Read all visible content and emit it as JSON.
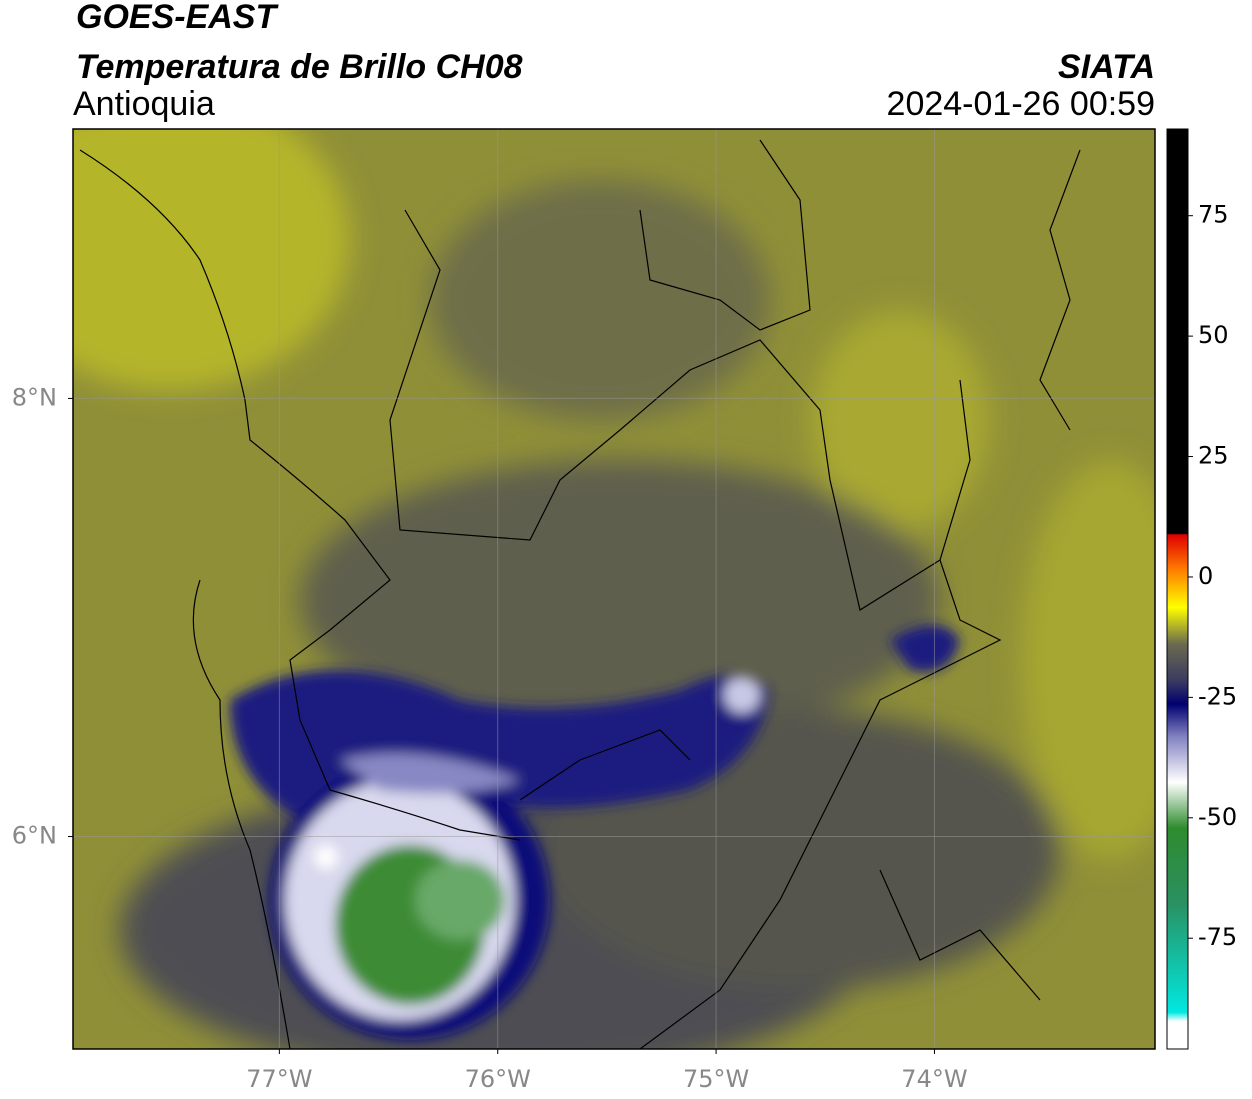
{
  "header": {
    "satellite": "GOES-EAST",
    "product": "Temperatura de Brillo CH08",
    "region": "Antioquia",
    "source": "SIATA",
    "datetime": "2024-01-26 00:59"
  },
  "map": {
    "xlim": [
      -77.945,
      -72.99
    ],
    "ylim": [
      5.03,
      9.23
    ],
    "xticks": [
      {
        "value": -77,
        "label": "77°W"
      },
      {
        "value": -76,
        "label": "76°W"
      },
      {
        "value": -75,
        "label": "75°W"
      },
      {
        "value": -74,
        "label": "74°W"
      }
    ],
    "yticks": [
      {
        "value": 8,
        "label": "8°N"
      },
      {
        "value": 6,
        "label": "6°N"
      }
    ],
    "grid": true
  },
  "colorbar": {
    "clim": [
      -98,
      93
    ],
    "ticks": [
      75,
      50,
      25,
      0,
      -25,
      -50,
      -75
    ]
  }
}
